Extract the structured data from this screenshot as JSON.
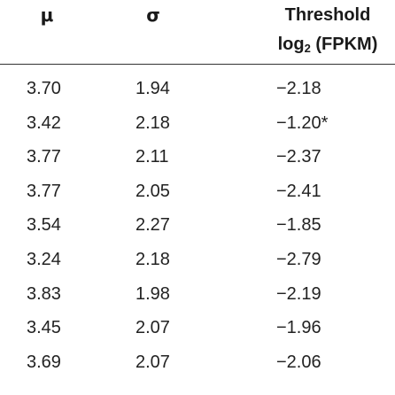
{
  "table": {
    "headers": {
      "mu": "μ",
      "sigma": "σ",
      "threshold_line1": "Threshold",
      "threshold_line2_prefix": "log",
      "threshold_line2_sub": "2",
      "threshold_line2_suffix": " (FPKM)"
    },
    "rows": [
      {
        "mu": "3.70",
        "sigma": "1.94",
        "threshold": "−2.18"
      },
      {
        "mu": "3.42",
        "sigma": "2.18",
        "threshold": "−1.20*"
      },
      {
        "mu": "3.77",
        "sigma": "2.11",
        "threshold": "−2.37"
      },
      {
        "mu": "3.77",
        "sigma": "2.05",
        "threshold": "−2.41"
      },
      {
        "mu": "3.54",
        "sigma": "2.27",
        "threshold": "−1.85"
      },
      {
        "mu": "3.24",
        "sigma": "2.18",
        "threshold": "−2.79"
      },
      {
        "mu": "3.83",
        "sigma": "1.98",
        "threshold": "−2.19"
      },
      {
        "mu": "3.45",
        "sigma": "2.07",
        "threshold": "−1.96"
      },
      {
        "mu": "3.69",
        "sigma": "2.07",
        "threshold": "−2.06"
      }
    ]
  }
}
